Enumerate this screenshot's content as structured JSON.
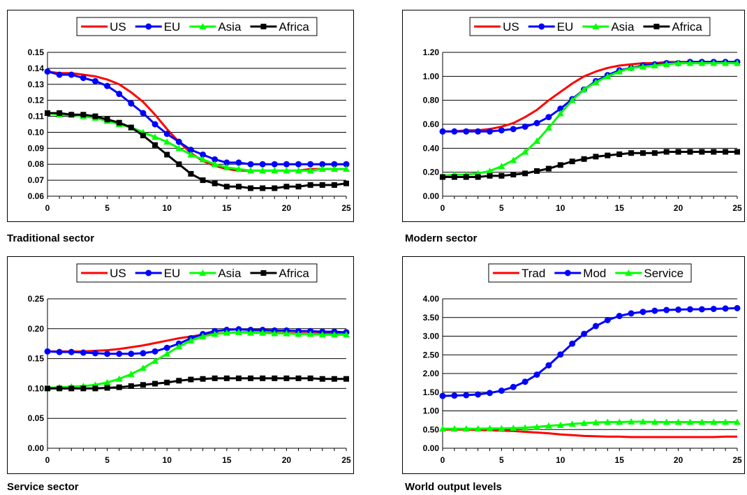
{
  "chart_data": [
    {
      "type": "line",
      "caption": "Traditional sector",
      "x": [
        0,
        1,
        2,
        3,
        4,
        5,
        6,
        7,
        8,
        9,
        10,
        11,
        12,
        13,
        14,
        15,
        16,
        17,
        18,
        19,
        20,
        21,
        22,
        23,
        24,
        25
      ],
      "xticks": [
        0,
        5,
        10,
        15,
        20,
        25
      ],
      "ylim": [
        0.06,
        0.15
      ],
      "yticks": [
        0.06,
        0.07,
        0.08,
        0.09,
        0.1,
        0.11,
        0.12,
        0.13,
        0.14,
        0.15
      ],
      "ydecimals": 2,
      "grid": true,
      "legend_position": "top",
      "series": [
        {
          "name": "US",
          "color": "#ff0000",
          "marker": "none",
          "values": [
            0.138,
            0.137,
            0.137,
            0.136,
            0.135,
            0.133,
            0.13,
            0.125,
            0.119,
            0.111,
            0.102,
            0.094,
            0.087,
            0.082,
            0.079,
            0.077,
            0.076,
            0.076,
            0.076,
            0.076,
            0.076,
            0.076,
            0.077,
            0.077,
            0.077,
            0.077
          ]
        },
        {
          "name": "EU",
          "color": "#0000ff",
          "marker": "circle",
          "values": [
            0.138,
            0.136,
            0.136,
            0.134,
            0.132,
            0.129,
            0.124,
            0.118,
            0.112,
            0.105,
            0.099,
            0.094,
            0.089,
            0.086,
            0.083,
            0.081,
            0.081,
            0.08,
            0.08,
            0.08,
            0.08,
            0.08,
            0.08,
            0.08,
            0.08,
            0.08
          ]
        },
        {
          "name": "Asia",
          "color": "#00ff00",
          "marker": "triangle",
          "values": [
            0.112,
            0.111,
            0.111,
            0.11,
            0.109,
            0.107,
            0.105,
            0.103,
            0.1,
            0.097,
            0.094,
            0.09,
            0.086,
            0.083,
            0.08,
            0.078,
            0.077,
            0.076,
            0.076,
            0.076,
            0.076,
            0.076,
            0.076,
            0.077,
            0.077,
            0.077
          ]
        },
        {
          "name": "Africa",
          "color": "#000000",
          "marker": "square",
          "values": [
            0.112,
            0.112,
            0.111,
            0.111,
            0.11,
            0.108,
            0.106,
            0.103,
            0.098,
            0.092,
            0.086,
            0.08,
            0.074,
            0.07,
            0.068,
            0.066,
            0.066,
            0.065,
            0.065,
            0.065,
            0.066,
            0.066,
            0.067,
            0.067,
            0.067,
            0.068
          ]
        }
      ]
    },
    {
      "type": "line",
      "caption": "Modern sector",
      "x": [
        0,
        1,
        2,
        3,
        4,
        5,
        6,
        7,
        8,
        9,
        10,
        11,
        12,
        13,
        14,
        15,
        16,
        17,
        18,
        19,
        20,
        21,
        22,
        23,
        24,
        25
      ],
      "xticks": [
        0,
        5,
        10,
        15,
        20,
        25
      ],
      "ylim": [
        0.0,
        1.2
      ],
      "yticks": [
        0.0,
        0.2,
        0.4,
        0.6,
        0.8,
        1.0,
        1.2
      ],
      "ydecimals": 2,
      "grid": true,
      "legend_position": "top",
      "series": [
        {
          "name": "US",
          "color": "#ff0000",
          "marker": "none",
          "values": [
            0.54,
            0.54,
            0.55,
            0.55,
            0.56,
            0.58,
            0.61,
            0.66,
            0.72,
            0.8,
            0.87,
            0.94,
            1.0,
            1.04,
            1.07,
            1.09,
            1.1,
            1.11,
            1.11,
            1.12,
            1.12,
            1.12,
            1.12,
            1.12,
            1.12,
            1.12
          ]
        },
        {
          "name": "EU",
          "color": "#0000ff",
          "marker": "circle",
          "values": [
            0.54,
            0.54,
            0.54,
            0.54,
            0.54,
            0.55,
            0.56,
            0.58,
            0.61,
            0.66,
            0.73,
            0.81,
            0.89,
            0.96,
            1.01,
            1.05,
            1.07,
            1.09,
            1.1,
            1.11,
            1.11,
            1.12,
            1.12,
            1.12,
            1.12,
            1.12
          ]
        },
        {
          "name": "Asia",
          "color": "#00ff00",
          "marker": "triangle",
          "values": [
            0.17,
            0.18,
            0.18,
            0.19,
            0.21,
            0.25,
            0.3,
            0.37,
            0.46,
            0.57,
            0.69,
            0.8,
            0.89,
            0.95,
            1.0,
            1.04,
            1.07,
            1.08,
            1.09,
            1.1,
            1.11,
            1.11,
            1.11,
            1.11,
            1.11,
            1.11
          ]
        },
        {
          "name": "Africa",
          "color": "#000000",
          "marker": "square",
          "values": [
            0.16,
            0.16,
            0.16,
            0.16,
            0.17,
            0.17,
            0.18,
            0.19,
            0.21,
            0.23,
            0.26,
            0.29,
            0.31,
            0.33,
            0.34,
            0.35,
            0.36,
            0.36,
            0.36,
            0.37,
            0.37,
            0.37,
            0.37,
            0.37,
            0.37,
            0.37
          ]
        }
      ]
    },
    {
      "type": "line",
      "caption": "Service sector",
      "x": [
        0,
        1,
        2,
        3,
        4,
        5,
        6,
        7,
        8,
        9,
        10,
        11,
        12,
        13,
        14,
        15,
        16,
        17,
        18,
        19,
        20,
        21,
        22,
        23,
        24,
        25
      ],
      "xticks": [
        0,
        5,
        10,
        15,
        20,
        25
      ],
      "ylim": [
        0.0,
        0.25
      ],
      "yticks": [
        0.0,
        0.05,
        0.1,
        0.15,
        0.2,
        0.25
      ],
      "ydecimals": 2,
      "grid": true,
      "legend_position": "top",
      "series": [
        {
          "name": "US",
          "color": "#ff0000",
          "marker": "none",
          "values": [
            0.162,
            0.162,
            0.162,
            0.162,
            0.163,
            0.164,
            0.166,
            0.169,
            0.172,
            0.176,
            0.18,
            0.184,
            0.187,
            0.19,
            0.192,
            0.193,
            0.194,
            0.194,
            0.194,
            0.193,
            0.193,
            0.192,
            0.192,
            0.192,
            0.192,
            0.191
          ]
        },
        {
          "name": "EU",
          "color": "#0000ff",
          "marker": "circle",
          "values": [
            0.162,
            0.161,
            0.161,
            0.16,
            0.159,
            0.158,
            0.158,
            0.158,
            0.159,
            0.162,
            0.168,
            0.175,
            0.184,
            0.191,
            0.196,
            0.198,
            0.199,
            0.198,
            0.198,
            0.197,
            0.197,
            0.196,
            0.196,
            0.195,
            0.195,
            0.194
          ]
        },
        {
          "name": "Asia",
          "color": "#00ff00",
          "marker": "triangle",
          "values": [
            0.101,
            0.102,
            0.103,
            0.104,
            0.106,
            0.11,
            0.116,
            0.124,
            0.134,
            0.146,
            0.158,
            0.17,
            0.18,
            0.187,
            0.191,
            0.193,
            0.194,
            0.193,
            0.193,
            0.192,
            0.192,
            0.191,
            0.191,
            0.19,
            0.19,
            0.19
          ]
        },
        {
          "name": "Africa",
          "color": "#000000",
          "marker": "square",
          "values": [
            0.1,
            0.1,
            0.1,
            0.1,
            0.1,
            0.101,
            0.102,
            0.104,
            0.106,
            0.108,
            0.11,
            0.113,
            0.115,
            0.116,
            0.117,
            0.117,
            0.117,
            0.117,
            0.117,
            0.117,
            0.117,
            0.117,
            0.117,
            0.116,
            0.116,
            0.116
          ]
        }
      ]
    },
    {
      "type": "line",
      "caption": "World output levels",
      "x": [
        0,
        1,
        2,
        3,
        4,
        5,
        6,
        7,
        8,
        9,
        10,
        11,
        12,
        13,
        14,
        15,
        16,
        17,
        18,
        19,
        20,
        21,
        22,
        23,
        24,
        25
      ],
      "xticks": [
        0,
        5,
        10,
        15,
        20,
        25
      ],
      "ylim": [
        0.0,
        4.0
      ],
      "yticks": [
        0.0,
        0.5,
        1.0,
        1.5,
        2.0,
        2.5,
        3.0,
        3.5,
        4.0
      ],
      "ydecimals": 2,
      "grid": true,
      "legend_position": "top",
      "series": [
        {
          "name": "Trad",
          "color": "#ff0000",
          "marker": "none",
          "values": [
            0.5,
            0.5,
            0.5,
            0.49,
            0.48,
            0.47,
            0.46,
            0.44,
            0.42,
            0.4,
            0.37,
            0.35,
            0.33,
            0.32,
            0.31,
            0.31,
            0.3,
            0.3,
            0.3,
            0.3,
            0.3,
            0.3,
            0.3,
            0.3,
            0.31,
            0.31
          ]
        },
        {
          "name": "Mod",
          "color": "#0000ff",
          "marker": "circle",
          "values": [
            1.4,
            1.41,
            1.42,
            1.44,
            1.48,
            1.54,
            1.64,
            1.78,
            1.97,
            2.22,
            2.51,
            2.8,
            3.06,
            3.27,
            3.43,
            3.54,
            3.61,
            3.65,
            3.68,
            3.7,
            3.71,
            3.72,
            3.72,
            3.73,
            3.74,
            3.75
          ]
        },
        {
          "name": "Service",
          "color": "#00ff00",
          "marker": "triangle",
          "values": [
            0.52,
            0.52,
            0.52,
            0.52,
            0.53,
            0.53,
            0.54,
            0.55,
            0.57,
            0.6,
            0.62,
            0.65,
            0.67,
            0.69,
            0.7,
            0.7,
            0.71,
            0.71,
            0.7,
            0.7,
            0.7,
            0.7,
            0.7,
            0.7,
            0.7,
            0.7
          ]
        }
      ]
    }
  ]
}
